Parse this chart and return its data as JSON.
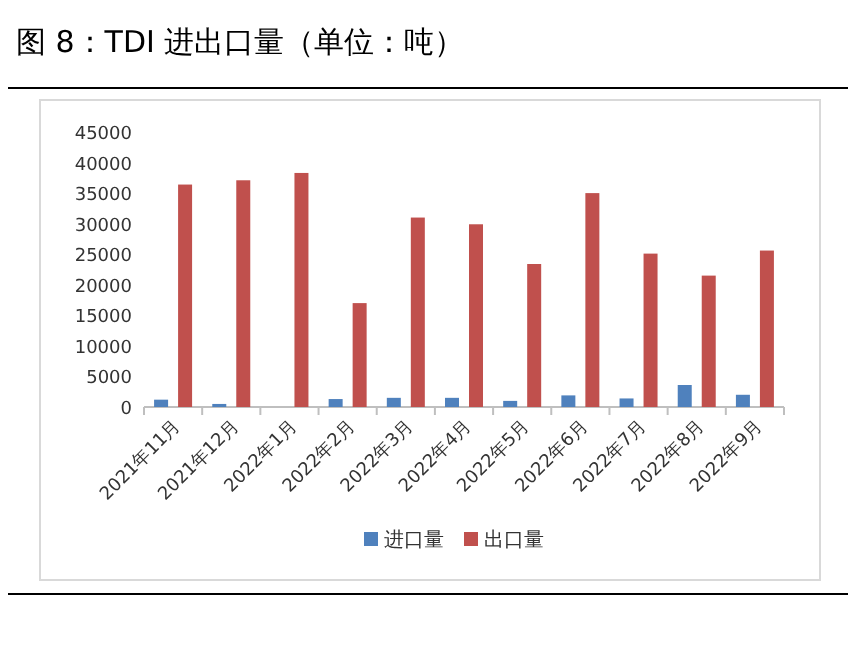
{
  "chart_data": {
    "type": "bar",
    "title": "图 8：TDI 进出口量（单位：吨）",
    "categories": [
      "2021年11月",
      "2021年12月",
      "2022年1月",
      "2022年2月",
      "2022年3月",
      "2022年4月",
      "2022年5月",
      "2022年6月",
      "2022年7月",
      "2022年8月",
      "2022年9月"
    ],
    "series": [
      {
        "name": "进口量",
        "color": "#4f81bd",
        "values": [
          1200,
          500,
          0,
          1300,
          1500,
          1500,
          1000,
          1900,
          1400,
          3600,
          2000
        ]
      },
      {
        "name": "出口量",
        "color": "#c0504d",
        "values": [
          36400,
          37100,
          38300,
          17000,
          31000,
          29900,
          23400,
          35000,
          25100,
          21500,
          25600
        ]
      }
    ],
    "ylim": [
      0,
      45000
    ],
    "yticks": [
      0,
      5000,
      10000,
      15000,
      20000,
      25000,
      30000,
      35000,
      40000,
      45000
    ],
    "grid": false,
    "legend": "bottom"
  }
}
